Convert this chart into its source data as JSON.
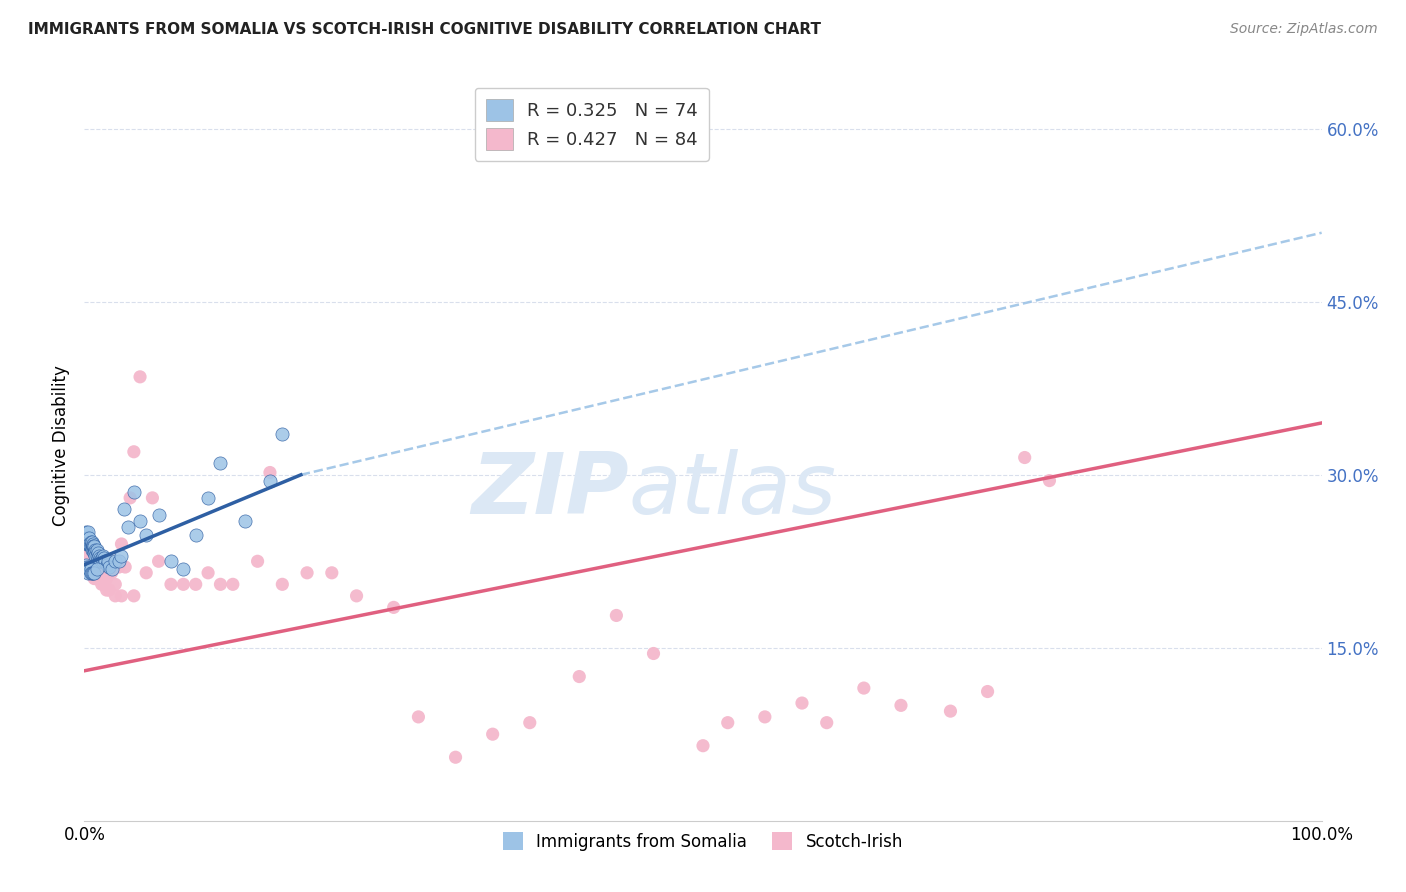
{
  "title": "IMMIGRANTS FROM SOMALIA VS SCOTCH-IRISH COGNITIVE DISABILITY CORRELATION CHART",
  "source": "Source: ZipAtlas.com",
  "ylabel": "Cognitive Disability",
  "xlim": [
    0,
    1.0
  ],
  "ylim": [
    0,
    0.65
  ],
  "y_ticks_right": [
    0.15,
    0.3,
    0.45,
    0.6
  ],
  "y_tick_right_labels": [
    "15.0%",
    "30.0%",
    "45.0%",
    "60.0%"
  ],
  "somalia_color": "#9dc3e6",
  "scotch_color": "#f4b8cc",
  "somalia_line_color": "#2e5fa3",
  "scotch_line_color": "#e06080",
  "dashed_line_color": "#9dc3e6",
  "background_color": "#ffffff",
  "grid_color": "#d0d8e8",
  "watermark_zip": "ZIP",
  "watermark_atlas": "atlas",
  "watermark_color": "#dce8f5",
  "somalia_x": [
    0.001,
    0.002,
    0.002,
    0.003,
    0.003,
    0.003,
    0.004,
    0.004,
    0.004,
    0.005,
    0.005,
    0.005,
    0.006,
    0.006,
    0.006,
    0.006,
    0.007,
    0.007,
    0.007,
    0.007,
    0.008,
    0.008,
    0.008,
    0.008,
    0.009,
    0.009,
    0.009,
    0.01,
    0.01,
    0.01,
    0.011,
    0.011,
    0.012,
    0.012,
    0.013,
    0.013,
    0.014,
    0.015,
    0.015,
    0.016,
    0.017,
    0.018,
    0.019,
    0.02,
    0.022,
    0.025,
    0.028,
    0.03,
    0.032,
    0.035,
    0.04,
    0.045,
    0.05,
    0.06,
    0.07,
    0.08,
    0.09,
    0.1,
    0.11,
    0.13,
    0.15,
    0.16,
    0.001,
    0.002,
    0.003,
    0.003,
    0.004,
    0.004,
    0.005,
    0.005,
    0.006,
    0.007,
    0.008,
    0.01
  ],
  "somalia_y": [
    0.25,
    0.24,
    0.245,
    0.24,
    0.245,
    0.25,
    0.24,
    0.245,
    0.24,
    0.24,
    0.242,
    0.238,
    0.238,
    0.24,
    0.242,
    0.235,
    0.238,
    0.24,
    0.235,
    0.238,
    0.235,
    0.237,
    0.232,
    0.238,
    0.235,
    0.233,
    0.23,
    0.233,
    0.23,
    0.235,
    0.232,
    0.228,
    0.23,
    0.225,
    0.228,
    0.225,
    0.228,
    0.225,
    0.23,
    0.228,
    0.225,
    0.222,
    0.225,
    0.22,
    0.218,
    0.225,
    0.225,
    0.23,
    0.27,
    0.255,
    0.285,
    0.26,
    0.248,
    0.265,
    0.225,
    0.218,
    0.248,
    0.28,
    0.31,
    0.26,
    0.295,
    0.335,
    0.222,
    0.22,
    0.218,
    0.215,
    0.22,
    0.218,
    0.218,
    0.215,
    0.215,
    0.215,
    0.215,
    0.218
  ],
  "scotch_x": [
    0.001,
    0.002,
    0.003,
    0.003,
    0.004,
    0.004,
    0.005,
    0.005,
    0.006,
    0.006,
    0.007,
    0.007,
    0.008,
    0.008,
    0.009,
    0.009,
    0.01,
    0.01,
    0.011,
    0.012,
    0.013,
    0.014,
    0.015,
    0.016,
    0.018,
    0.02,
    0.022,
    0.025,
    0.028,
    0.03,
    0.033,
    0.037,
    0.04,
    0.045,
    0.05,
    0.055,
    0.06,
    0.07,
    0.08,
    0.09,
    0.1,
    0.11,
    0.12,
    0.14,
    0.15,
    0.16,
    0.18,
    0.2,
    0.22,
    0.25,
    0.27,
    0.3,
    0.33,
    0.36,
    0.4,
    0.43,
    0.46,
    0.5,
    0.52,
    0.55,
    0.58,
    0.6,
    0.63,
    0.66,
    0.7,
    0.73,
    0.76,
    0.78,
    0.004,
    0.005,
    0.006,
    0.007,
    0.008,
    0.009,
    0.01,
    0.011,
    0.012,
    0.014,
    0.016,
    0.018,
    0.02,
    0.025,
    0.03,
    0.04
  ],
  "scotch_y": [
    0.23,
    0.218,
    0.225,
    0.22,
    0.222,
    0.218,
    0.22,
    0.215,
    0.218,
    0.215,
    0.22,
    0.215,
    0.218,
    0.212,
    0.215,
    0.212,
    0.215,
    0.21,
    0.212,
    0.215,
    0.212,
    0.215,
    0.218,
    0.215,
    0.21,
    0.215,
    0.215,
    0.205,
    0.22,
    0.24,
    0.22,
    0.28,
    0.32,
    0.385,
    0.215,
    0.28,
    0.225,
    0.205,
    0.205,
    0.205,
    0.215,
    0.205,
    0.205,
    0.225,
    0.302,
    0.205,
    0.215,
    0.215,
    0.195,
    0.185,
    0.09,
    0.055,
    0.075,
    0.085,
    0.125,
    0.178,
    0.145,
    0.065,
    0.085,
    0.09,
    0.102,
    0.085,
    0.115,
    0.1,
    0.095,
    0.112,
    0.315,
    0.295,
    0.218,
    0.215,
    0.215,
    0.212,
    0.21,
    0.21,
    0.21,
    0.215,
    0.215,
    0.205,
    0.205,
    0.2,
    0.2,
    0.195,
    0.195,
    0.195
  ],
  "somalia_line_x0": 0.0,
  "somalia_line_x1": 0.175,
  "somalia_line_y0": 0.222,
  "somalia_line_y1": 0.3,
  "dashed_line_x0": 0.175,
  "dashed_line_x1": 1.0,
  "dashed_line_y0": 0.3,
  "dashed_line_y1": 0.51,
  "scotch_line_x0": 0.0,
  "scotch_line_x1": 1.0,
  "scotch_line_y0": 0.13,
  "scotch_line_y1": 0.345
}
